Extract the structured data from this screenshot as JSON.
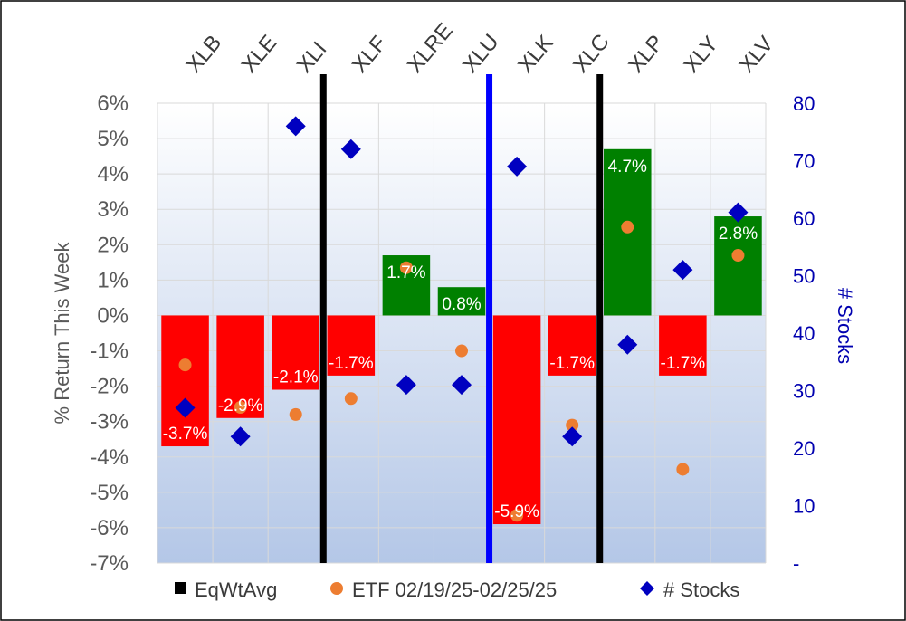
{
  "chart_data": {
    "type": "bar",
    "categories": [
      "XLB",
      "XLE",
      "XLI",
      "XLF",
      "XLRE",
      "XLU",
      "XLK",
      "XLC",
      "XLP",
      "XLY",
      "XLV"
    ],
    "series": [
      {
        "name": "EqWtAvg",
        "kind": "bar",
        "axis": "left",
        "values": [
          -3.7,
          -2.9,
          -2.1,
          -1.7,
          1.7,
          0.8,
          -5.9,
          -1.7,
          4.7,
          -1.7,
          2.8
        ],
        "labels": [
          "-3.7%",
          "-2.9%",
          "-2.1%",
          "-1.7%",
          "1.7%",
          "0.8%",
          "-5.9%",
          "-1.7%",
          "4.7%",
          "-1.7%",
          "2.8%"
        ]
      },
      {
        "name": "ETF 02/19/25-02/25/25",
        "kind": "scatter-circle",
        "axis": "left",
        "values": [
          -1.4,
          -2.6,
          -2.8,
          -2.35,
          1.35,
          -1.0,
          -5.65,
          -3.1,
          2.5,
          -4.35,
          1.7
        ]
      },
      {
        "name": "# Stocks",
        "kind": "scatter-diamond",
        "axis": "right",
        "values": [
          27,
          22,
          76,
          72,
          31,
          31,
          69,
          22,
          38,
          51,
          61
        ]
      }
    ],
    "ylabel": "% Return This Week",
    "ylabel_right": "# Stocks",
    "ylim": [
      -7,
      6
    ],
    "ylim_right": [
      0,
      80
    ],
    "yticks": [
      "6%",
      "5%",
      "4%",
      "3%",
      "2%",
      "1%",
      "0%",
      "-1%",
      "-2%",
      "-3%",
      "-4%",
      "-5%",
      "-6%",
      "-7%"
    ],
    "yticks_right": [
      "80",
      "70",
      "60",
      "50",
      "40",
      "30",
      "20",
      "10",
      "-"
    ],
    "separators_after": [
      "XLI",
      "XLU",
      "XLC"
    ],
    "legend_position": "bottom",
    "grid": true
  },
  "colors": {
    "positive_bar": "#008000",
    "negative_bar": "#ff0000",
    "etf_marker": "#ed7d31",
    "stocks_marker": "#0000c0",
    "separator_black": "#000000",
    "separator_blue": "#0000ff",
    "plot_bg_top": "#ffffff",
    "plot_bg_bottom": "#b4c7e7",
    "right_axis": "#0000b0"
  }
}
